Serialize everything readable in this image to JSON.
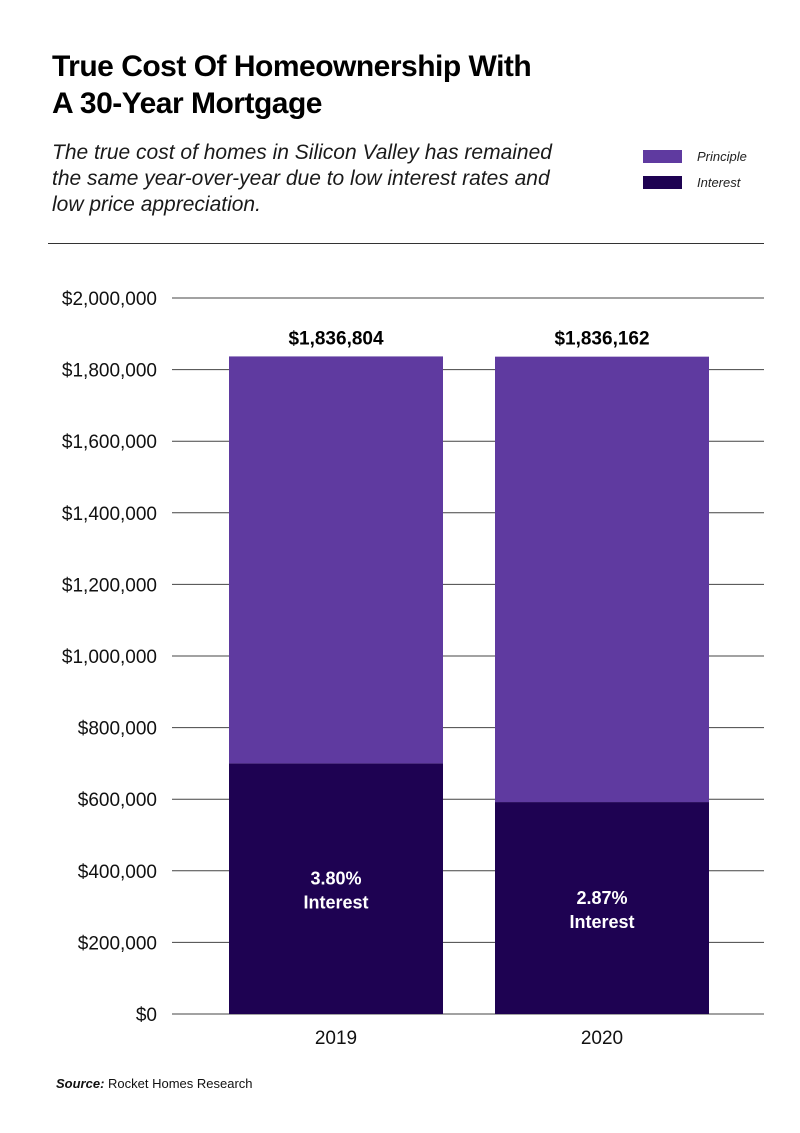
{
  "header": {
    "title_line1": "True Cost Of Homeownership With",
    "title_line2": "A 30-Year Mortgage",
    "subtitle": "The true cost of homes in Silicon Valley has remained the same year-over-year due to low interest rates and low price appreciation."
  },
  "legend": [
    {
      "label": "Principle",
      "color": "#5f3aa0"
    },
    {
      "label": "Interest",
      "color": "#1e0252"
    }
  ],
  "footer": {
    "source_label": "Source:",
    "source_text": " Rocket Homes Research"
  },
  "chart_data": {
    "type": "bar",
    "stacked": true,
    "title": "True Cost Of Homeownership With A 30-Year Mortgage",
    "categories": [
      "2019",
      "2020"
    ],
    "series": [
      {
        "name": "Interest",
        "color": "#1e0252",
        "values": [
          700000,
          592000
        ]
      },
      {
        "name": "Principle",
        "color": "#5f3aa0",
        "values": [
          1136804,
          1244162
        ]
      }
    ],
    "totals": [
      1836804,
      1836162
    ],
    "total_labels": [
      "$1,836,804",
      "$1,836,162"
    ],
    "bar_annotations": [
      {
        "line1": "3.80%",
        "line2": "Interest"
      },
      {
        "line1": "2.87%",
        "line2": "Interest"
      }
    ],
    "yticks": [
      0,
      200000,
      400000,
      600000,
      800000,
      1000000,
      1200000,
      1400000,
      1600000,
      1800000,
      2000000
    ],
    "ytick_labels": [
      "$0",
      "$200,000",
      "$400,000",
      "$600,000",
      "$800,000",
      "$1,000,000",
      "$1,200,000",
      "$1,400,000",
      "$1,600,000",
      "$1,800,000",
      "$2,000,000"
    ],
    "ylim": [
      0,
      2000000
    ],
    "xlabel": "",
    "ylabel": "",
    "grid": true,
    "legend_position": "top-right"
  }
}
